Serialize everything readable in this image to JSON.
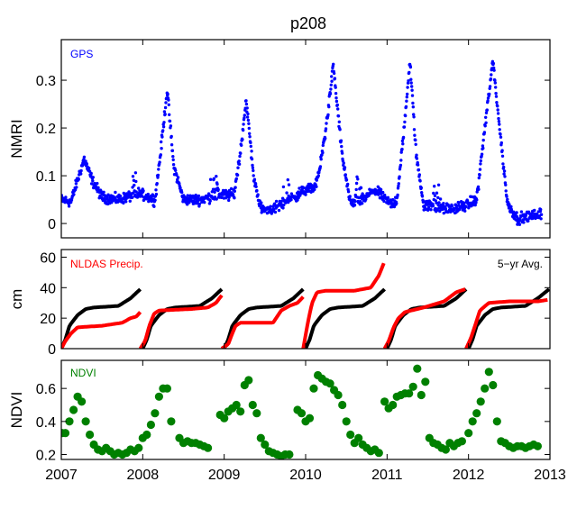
{
  "chart_data": {
    "title": "p208",
    "type": "scatter",
    "x_axis": {
      "range": [
        2007,
        2013
      ],
      "ticks": [
        2007,
        2008,
        2009,
        2010,
        2011,
        2012,
        2013
      ],
      "tick_labels": [
        "2007",
        "2008",
        "2009",
        "2010",
        "2011",
        "2012",
        "2013"
      ]
    },
    "panels": [
      {
        "id": "gps",
        "type": "scatter",
        "ylabel": "NMRI",
        "ylim": [
          -0.03,
          0.385
        ],
        "yticks": [
          0,
          0.1,
          0.2,
          0.3
        ],
        "ytick_labels": [
          "0",
          "0.1",
          "0.2",
          "0.3"
        ],
        "legend": {
          "label": "GPS",
          "color": "#0000ff",
          "position": "top-left"
        },
        "series": [
          {
            "name": "GPS",
            "color": "#0000ff",
            "baseline_segments": [
              {
                "x": [
                  2007.0,
                  2007.12,
                  2007.18,
                  2007.28,
                  2007.38,
                  2007.5,
                  2007.7,
                  2007.9,
                  2008.0,
                  2008.15
                ],
                "y": [
                  0.05,
                  0.045,
                  0.08,
                  0.135,
                  0.09,
                  0.055,
                  0.05,
                  0.06,
                  0.06,
                  0.05
                ]
              },
              {
                "x": [
                  2008.15,
                  2008.22,
                  2008.3,
                  2008.38,
                  2008.5,
                  2008.7,
                  2008.95,
                  2009.05,
                  2009.12
                ],
                "y": [
                  0.05,
                  0.15,
                  0.28,
                  0.12,
                  0.05,
                  0.05,
                  0.06,
                  0.06,
                  0.06
                ]
              },
              {
                "x": [
                  2009.12,
                  2009.2,
                  2009.27,
                  2009.36,
                  2009.45,
                  2009.6,
                  2009.8,
                  2010.0,
                  2010.1,
                  2010.16
                ],
                "y": [
                  0.06,
                  0.15,
                  0.26,
                  0.1,
                  0.03,
                  0.03,
                  0.05,
                  0.07,
                  0.075,
                  0.1
                ]
              },
              {
                "x": [
                  2010.16,
                  2010.25,
                  2010.34,
                  2010.45,
                  2010.55,
                  2010.7,
                  2010.85,
                  2011.05,
                  2011.12
                ],
                "y": [
                  0.1,
                  0.2,
                  0.33,
                  0.14,
                  0.04,
                  0.05,
                  0.07,
                  0.04,
                  0.05
                ]
              },
              {
                "x": [
                  2011.12,
                  2011.2,
                  2011.28,
                  2011.36,
                  2011.45,
                  2011.6,
                  2011.8,
                  2012.0,
                  2012.1
                ],
                "y": [
                  0.05,
                  0.18,
                  0.34,
                  0.14,
                  0.04,
                  0.035,
                  0.03,
                  0.04,
                  0.05
                ]
              },
              {
                "x": [
                  2012.1,
                  2012.2,
                  2012.3,
                  2012.4,
                  2012.48,
                  2012.6,
                  2012.75,
                  2012.9
                ],
                "y": [
                  0.05,
                  0.2,
                  0.34,
                  0.17,
                  0.04,
                  0.01,
                  0.015,
                  0.02
                ]
              }
            ],
            "bursts": [
              {
                "x": 2007.92,
                "y": 0.12,
                "spread": 0.04
              },
              {
                "x": 2008.88,
                "y": 0.1,
                "spread": 0.04
              },
              {
                "x": 2009.75,
                "y": 0.07,
                "spread": 0.05
              },
              {
                "x": 2010.65,
                "y": 0.1,
                "spread": 0.05
              },
              {
                "x": 2011.62,
                "y": 0.07,
                "spread": 0.05
              }
            ]
          }
        ]
      },
      {
        "id": "precip",
        "type": "line",
        "ylabel": "cm",
        "ylim": [
          0,
          65
        ],
        "yticks": [
          0,
          20,
          40,
          60
        ],
        "ytick_labels": [
          "0",
          "20",
          "40",
          "60"
        ],
        "legends": [
          {
            "label": "NLDAS Precip.",
            "color": "#ff0000",
            "position": "top-left"
          },
          {
            "label": "5−yr Avg.",
            "color": "#000000",
            "position": "top-right"
          }
        ],
        "series": [
          {
            "name": "NLDAS Precip.",
            "color": "#ff0000",
            "segments": [
              {
                "x": [
                  2007.0,
                  2007.05,
                  2007.12,
                  2007.2,
                  2007.5,
                  2007.75,
                  2007.85,
                  2007.92,
                  2007.97
                ],
                "y": [
                  0,
                  5,
                  10,
                  14,
                  15,
                  17,
                  20,
                  21,
                  24
                ]
              },
              {
                "x": [
                  2007.97,
                  2008.03,
                  2008.08,
                  2008.14,
                  2008.2,
                  2008.6,
                  2008.8,
                  2008.9,
                  2008.97
                ],
                "y": [
                  0,
                  5,
                  15,
                  23,
                  25,
                  26,
                  27,
                  30,
                  35
                ]
              },
              {
                "x": [
                  2008.97,
                  2009.05,
                  2009.1,
                  2009.14,
                  2009.2,
                  2009.6,
                  2009.7,
                  2009.8,
                  2009.9,
                  2009.97
                ],
                "y": [
                  0,
                  3,
                  10,
                  15,
                  17,
                  17,
                  25,
                  28,
                  30,
                  34
                ]
              },
              {
                "x": [
                  2009.97,
                  2010.03,
                  2010.08,
                  2010.14,
                  2010.25,
                  2010.6,
                  2010.8,
                  2010.9,
                  2010.96
                ],
                "y": [
                  0,
                  18,
                  30,
                  37,
                  38,
                  38,
                  40,
                  48,
                  56
                ]
              },
              {
                "x": [
                  2010.97,
                  2011.02,
                  2011.08,
                  2011.14,
                  2011.22,
                  2011.45,
                  2011.7,
                  2011.85,
                  2011.96
                ],
                "y": [
                  0,
                  5,
                  14,
                  20,
                  24,
                  27,
                  31,
                  37,
                  39
                ]
              },
              {
                "x": [
                  2011.97,
                  2012.03,
                  2012.08,
                  2012.14,
                  2012.25,
                  2012.5,
                  2012.7,
                  2012.85,
                  2012.97
                ],
                "y": [
                  0,
                  7,
                  15,
                  25,
                  30,
                  31,
                  31,
                  31,
                  32
                ]
              }
            ]
          },
          {
            "name": "5−yr Avg.",
            "color": "#000000",
            "segments": [
              {
                "x": [
                  2007.0,
                  2007.05,
                  2007.1,
                  2007.2,
                  2007.3,
                  2007.4,
                  2007.7,
                  2007.85,
                  2007.97
                ],
                "y": [
                  0,
                  6,
                  15,
                  22,
                  26,
                  27,
                  28,
                  33,
                  39
                ]
              },
              {
                "x": [
                  2008.0,
                  2008.05,
                  2008.1,
                  2008.2,
                  2008.3,
                  2008.4,
                  2008.7,
                  2008.85,
                  2008.97
                ],
                "y": [
                  0,
                  6,
                  15,
                  22,
                  26,
                  27,
                  28,
                  33,
                  39
                ]
              },
              {
                "x": [
                  2009.0,
                  2009.05,
                  2009.1,
                  2009.2,
                  2009.3,
                  2009.4,
                  2009.7,
                  2009.85,
                  2009.97
                ],
                "y": [
                  0,
                  6,
                  15,
                  22,
                  26,
                  27,
                  28,
                  33,
                  39
                ]
              },
              {
                "x": [
                  2010.0,
                  2010.05,
                  2010.1,
                  2010.2,
                  2010.3,
                  2010.4,
                  2010.7,
                  2010.85,
                  2010.97
                ],
                "y": [
                  0,
                  6,
                  15,
                  22,
                  26,
                  27,
                  28,
                  33,
                  39
                ]
              },
              {
                "x": [
                  2011.0,
                  2011.05,
                  2011.1,
                  2011.2,
                  2011.3,
                  2011.4,
                  2011.7,
                  2011.85,
                  2011.97
                ],
                "y": [
                  0,
                  6,
                  15,
                  22,
                  26,
                  27,
                  28,
                  33,
                  39
                ]
              },
              {
                "x": [
                  2012.0,
                  2012.05,
                  2012.1,
                  2012.2,
                  2012.3,
                  2012.4,
                  2012.7,
                  2012.85,
                  2012.99
                ],
                "y": [
                  0,
                  6,
                  15,
                  22,
                  26,
                  27,
                  28,
                  33,
                  39
                ]
              }
            ]
          }
        ]
      },
      {
        "id": "ndvi",
        "type": "scatter",
        "ylabel": "NDVI",
        "ylim": [
          0.17,
          0.77
        ],
        "yticks": [
          0.2,
          0.4,
          0.6
        ],
        "ytick_labels": [
          "0.2",
          "0.4",
          "0.6"
        ],
        "legend": {
          "label": "NDVI",
          "color": "#008000",
          "position": "top-left"
        },
        "series": [
          {
            "name": "NDVI",
            "color": "#008000",
            "x": [
              2007.01,
              2007.05,
              2007.1,
              2007.15,
              2007.2,
              2007.25,
              2007.3,
              2007.35,
              2007.4,
              2007.45,
              2007.5,
              2007.55,
              2007.6,
              2007.65,
              2007.7,
              2007.75,
              2007.8,
              2007.85,
              2007.9,
              2007.95,
              2008.0,
              2008.05,
              2008.1,
              2008.15,
              2008.2,
              2008.25,
              2008.3,
              2008.35,
              2008.45,
              2008.5,
              2008.55,
              2008.6,
              2008.65,
              2008.7,
              2008.75,
              2008.8,
              2008.95,
              2009.0,
              2009.05,
              2009.1,
              2009.15,
              2009.2,
              2009.25,
              2009.3,
              2009.35,
              2009.4,
              2009.45,
              2009.5,
              2009.55,
              2009.6,
              2009.65,
              2009.7,
              2009.75,
              2009.8,
              2009.9,
              2009.95,
              2010.0,
              2010.05,
              2010.1,
              2010.15,
              2010.2,
              2010.25,
              2010.3,
              2010.35,
              2010.4,
              2010.45,
              2010.5,
              2010.55,
              2010.6,
              2010.65,
              2010.7,
              2010.75,
              2010.8,
              2010.85,
              2010.9,
              2010.97,
              2011.02,
              2011.07,
              2011.12,
              2011.17,
              2011.22,
              2011.27,
              2011.32,
              2011.37,
              2011.42,
              2011.47,
              2011.52,
              2011.57,
              2011.62,
              2011.67,
              2011.72,
              2011.77,
              2011.82,
              2011.87,
              2011.92,
              2012.0,
              2012.05,
              2012.1,
              2012.15,
              2012.2,
              2012.25,
              2012.3,
              2012.35,
              2012.4,
              2012.45,
              2012.5,
              2012.55,
              2012.6,
              2012.65,
              2012.7,
              2012.75,
              2012.8,
              2012.85
            ],
            "y": [
              0.33,
              0.33,
              0.4,
              0.47,
              0.55,
              0.52,
              0.4,
              0.32,
              0.26,
              0.23,
              0.22,
              0.24,
              0.22,
              0.2,
              0.21,
              0.2,
              0.21,
              0.23,
              0.22,
              0.24,
              0.3,
              0.32,
              0.38,
              0.45,
              0.55,
              0.6,
              0.6,
              0.4,
              0.3,
              0.27,
              0.28,
              0.27,
              0.27,
              0.26,
              0.25,
              0.24,
              0.44,
              0.42,
              0.46,
              0.48,
              0.5,
              0.46,
              0.62,
              0.65,
              0.5,
              0.45,
              0.3,
              0.26,
              0.22,
              0.21,
              0.2,
              0.19,
              0.2,
              0.2,
              0.47,
              0.45,
              0.4,
              0.42,
              0.6,
              0.68,
              0.66,
              0.64,
              0.63,
              0.59,
              0.56,
              0.5,
              0.4,
              0.32,
              0.27,
              0.3,
              0.26,
              0.24,
              0.22,
              0.23,
              0.21,
              0.52,
              0.48,
              0.5,
              0.55,
              0.56,
              0.57,
              0.57,
              0.61,
              0.72,
              0.56,
              0.64,
              0.3,
              0.27,
              0.26,
              0.24,
              0.23,
              0.27,
              0.25,
              0.27,
              0.28,
              0.33,
              0.4,
              0.45,
              0.52,
              0.6,
              0.7,
              0.62,
              0.4,
              0.28,
              0.27,
              0.25,
              0.24,
              0.25,
              0.25,
              0.24,
              0.25,
              0.26,
              0.25
            ]
          }
        ]
      }
    ]
  }
}
